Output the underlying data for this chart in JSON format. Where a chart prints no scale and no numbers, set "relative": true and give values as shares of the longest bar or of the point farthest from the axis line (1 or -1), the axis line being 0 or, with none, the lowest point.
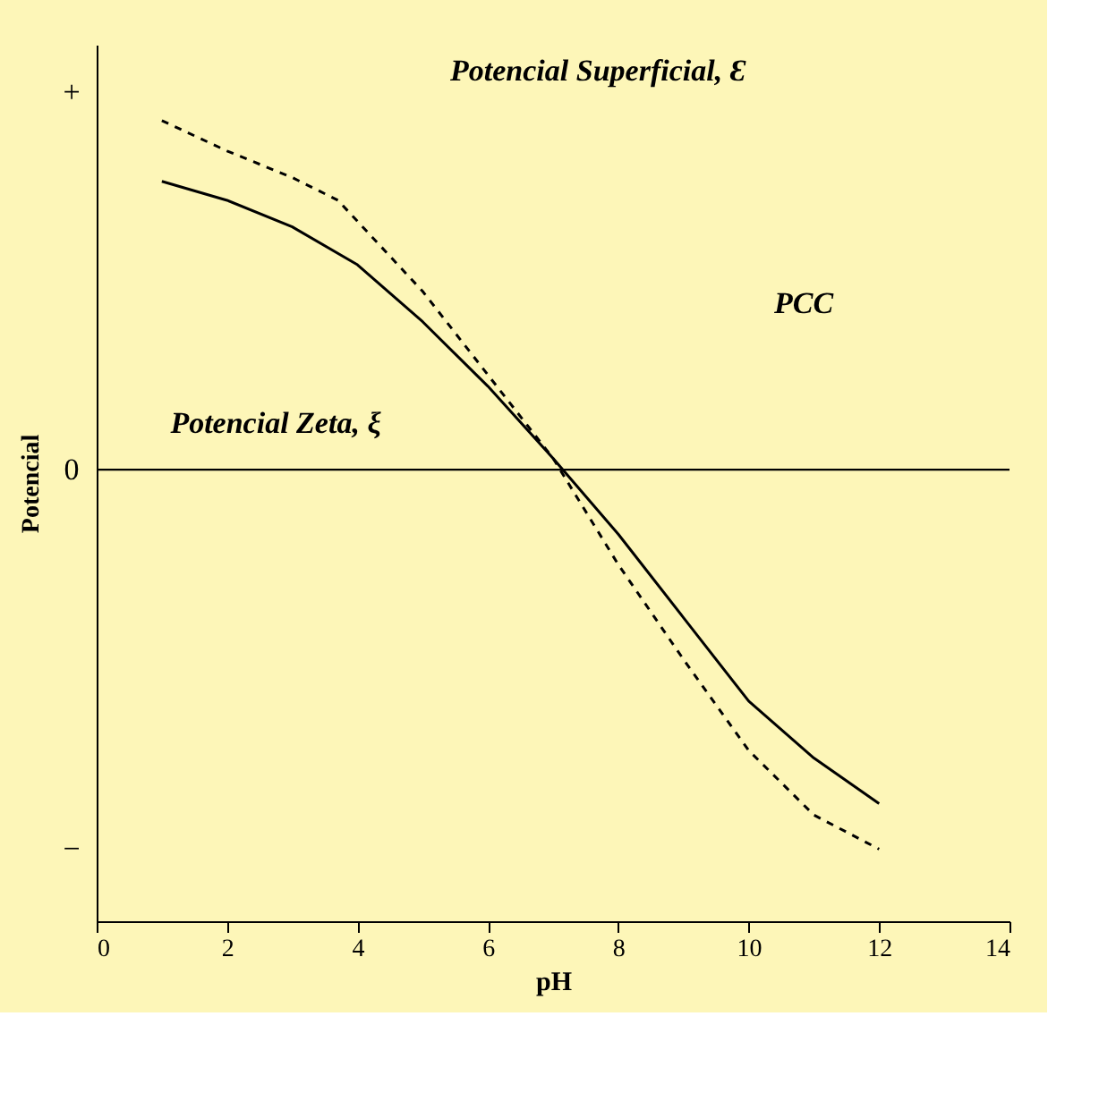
{
  "chart_data": {
    "type": "line",
    "relative": true,
    "xlabel": "pH",
    "ylabel": "Potencial",
    "xlim": [
      0,
      14
    ],
    "xticks": [
      0,
      2,
      4,
      6,
      8,
      10,
      12,
      14
    ],
    "grid": false,
    "series": [
      {
        "color": "#000000",
        "line_style": "solid",
        "x": [
          1,
          2,
          3,
          4,
          5,
          6,
          7,
          8,
          9,
          10,
          11,
          12
        ],
        "values": [
          0.76,
          0.71,
          0.64,
          0.54,
          0.39,
          0.22,
          0.03,
          -0.17,
          -0.39,
          -0.61,
          -0.76,
          -0.88
        ]
      },
      {
        "color": "#000000",
        "line_style": "dashed",
        "x": [
          1,
          2,
          3,
          3.7,
          5,
          6,
          7,
          8,
          9,
          10,
          11,
          12
        ],
        "values": [
          0.92,
          0.84,
          0.77,
          0.71,
          0.47,
          0.25,
          0.03,
          -0.25,
          -0.5,
          -0.74,
          -0.91,
          -1.0
        ]
      }
    ],
    "ref_lines": [
      {
        "axis": "y",
        "value": 0,
        "color": "#000000"
      }
    ],
    "annotations": [
      "Potencial  Superficial, Ɛ",
      "Potencial  Zeta, ξ",
      "PCC",
      "+",
      "0",
      "−"
    ]
  }
}
